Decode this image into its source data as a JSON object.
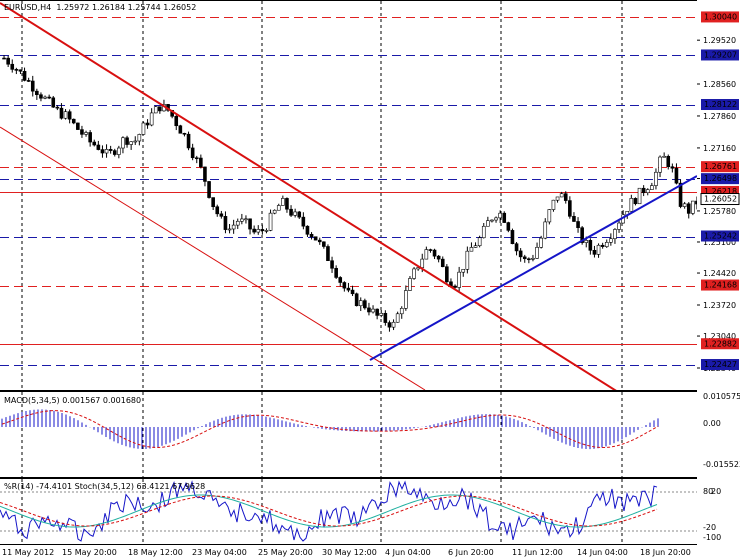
{
  "title": {
    "symbol": "EURUSD,H4",
    "open": "1.25972",
    "high": "1.26184",
    "low": "1.25744",
    "close": "1.26052"
  },
  "price_scale": {
    "min": 1.2188,
    "max": 1.304,
    "ticks": [
      "1.29520",
      "1.28560",
      "1.27860",
      "1.27160",
      "1.26490",
      "1.25780",
      "1.25100",
      "1.24420",
      "1.23720",
      "1.23040",
      "1.22340"
    ],
    "levels": [
      {
        "value": "1.30040",
        "color": "#e02020",
        "style": "dash",
        "boxed": true
      },
      {
        "value": "1.29207",
        "color": "#1a1aa8",
        "style": "dash",
        "boxed": true
      },
      {
        "value": "1.28122",
        "color": "#1a1aa8",
        "style": "dash",
        "boxed": true
      },
      {
        "value": "1.26761",
        "color": "#e02020",
        "style": "dash",
        "boxed": true
      },
      {
        "value": "1.26498",
        "color": "#1a1aa8",
        "style": "dash",
        "boxed": true
      },
      {
        "value": "1.26218",
        "color": "#e02020",
        "style": "solid",
        "boxed": true
      },
      {
        "value": "1.26052",
        "color": "#ffffff",
        "style": "none",
        "boxed": true,
        "text_color": "#000000"
      },
      {
        "value": "1.25242",
        "color": "#1a1aa8",
        "style": "dash",
        "boxed": true
      },
      {
        "value": "1.24168",
        "color": "#e02020",
        "style": "dash",
        "boxed": true
      },
      {
        "value": "1.22882",
        "color": "#e02020",
        "style": "solid",
        "boxed": true
      },
      {
        "value": "1.22427",
        "color": "#1a1aa8",
        "style": "dash",
        "boxed": true
      }
    ]
  },
  "macd": {
    "label": "MACD(5,34,5) 0.001567 0.001680",
    "ticks": [
      "0.010575",
      "0.00",
      "-0.015523"
    ]
  },
  "stoch": {
    "label": "%R(14) -74.4101  Stoch(34,5,12) 63.4121 67.9628",
    "ticks": [
      "80",
      "20",
      "-20",
      "-100"
    ]
  },
  "time_axis": [
    "11 May 2012",
    "15 May 20:00",
    "18 May 12:00",
    "23 May 04:00",
    "25 May 20:00",
    "30 May 12:00",
    "4 Jun 04:00",
    "6 Jun 20:00",
    "11 Jun 12:00",
    "14 Jun 04:00",
    "18 Jun 20:00"
  ],
  "colors": {
    "channel": "#d81010",
    "trend": "#1515c8",
    "macd_hist": "#1515c8",
    "macd_signal": "#d81010",
    "wpr": "#1515c8",
    "stoch_main": "#20b0a0",
    "stoch_signal": "#d81010"
  }
}
